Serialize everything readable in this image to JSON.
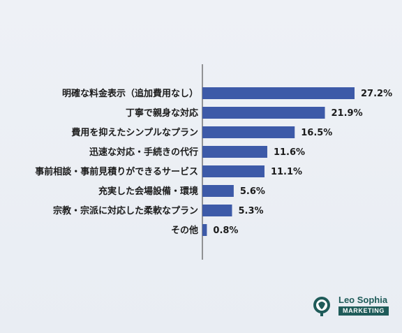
{
  "chart_data": {
    "type": "bar",
    "orientation": "horizontal",
    "categories": [
      "明確な料金表示（追加費用なし）",
      "丁寧で親身な対応",
      "費用を抑えたシンプルなプラン",
      "迅速な対応・手続きの代行",
      "事前相談・事前見積りができるサービス",
      "充実した会場設備・環境",
      "宗教・宗派に対応した柔軟なプラン",
      "その他"
    ],
    "values": [
      27.2,
      21.9,
      16.5,
      11.6,
      11.1,
      5.6,
      5.3,
      0.8
    ],
    "value_labels": [
      "27.2%",
      "21.9%",
      "16.5%",
      "11.6%",
      "11.1%",
      "5.6%",
      "5.3%",
      "0.8%"
    ],
    "xlim": [
      0,
      30
    ],
    "bar_color": "#3d5aa8",
    "grid": false
  },
  "logo": {
    "brand": "Leo Sophia",
    "sub": "MARKETING",
    "color": "#1f5b59"
  }
}
